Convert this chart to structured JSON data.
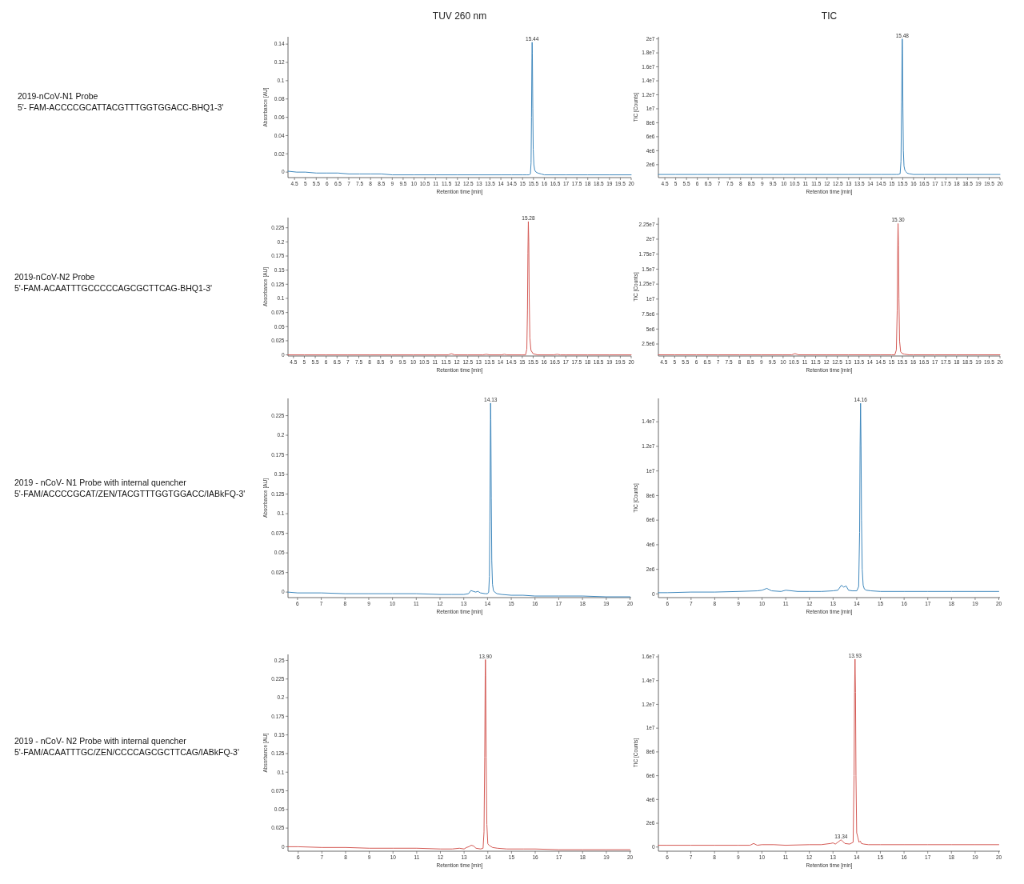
{
  "chart_data": [
    {
      "type": "line",
      "title": "TUV 260 nm",
      "xlabel": "Retention time [min]",
      "ylabel": "Absorbance [AU]",
      "annotations": [
        "2019-nCoV-N1 Probe",
        "5'- FAM-ACCCCGCATTACGTTTGGTGGACC-BHQ1-3'",
        {
          "text": "15.44",
          "x": 15.44,
          "y": 0.142
        }
      ],
      "xlim": [
        4.2,
        20
      ],
      "xticks": [
        4.5,
        5,
        5.5,
        6,
        6.5,
        7,
        7.5,
        8,
        8.5,
        9,
        9.5,
        10,
        10.5,
        11,
        11.5,
        12,
        12.5,
        13,
        13.5,
        14,
        14.5,
        15,
        15.5,
        16,
        16.5,
        17,
        17.5,
        18,
        18.5,
        19,
        19.5,
        20
      ],
      "ylim": [
        -0.006,
        0.148
      ],
      "yticks": [
        0,
        0.02,
        0.04,
        0.06,
        0.08,
        0.1,
        0.12,
        0.14
      ],
      "series": [
        {
          "color": "#3f88bd",
          "x": [
            4.2,
            4.6,
            5,
            5.5,
            6,
            6.5,
            7,
            7.5,
            8,
            8.5,
            9,
            10,
            11,
            12,
            13,
            14,
            14.5,
            15,
            15.2,
            15.3,
            15.36,
            15.39,
            15.41,
            15.43,
            15.44,
            15.45,
            15.47,
            15.49,
            15.52,
            15.56,
            15.62,
            15.7,
            15.85,
            16,
            16.5,
            17,
            18,
            19,
            20
          ],
          "values": [
            0.001,
            0,
            0,
            -0.001,
            -0.001,
            -0.001,
            -0.002,
            -0.002,
            -0.002,
            -0.002,
            -0.003,
            -0.003,
            -0.003,
            -0.003,
            -0.003,
            -0.003,
            -0.003,
            -0.003,
            -0.003,
            -0.003,
            -0.002,
            0.01,
            0.06,
            0.125,
            0.142,
            0.13,
            0.07,
            0.025,
            0.008,
            0.002,
            0,
            -0.001,
            -0.002,
            -0.003,
            -0.003,
            -0.003,
            -0.003,
            -0.003,
            -0.003
          ]
        }
      ]
    },
    {
      "type": "line",
      "title": "TIC",
      "xlabel": "Retention time [min]",
      "ylabel": "TIC [Counts]",
      "annotations": [
        {
          "text": "15.48",
          "x": 15.48,
          "y": 20000000
        }
      ],
      "xlim": [
        4.2,
        20
      ],
      "xticks": [
        4.5,
        5,
        5.5,
        6,
        6.5,
        7,
        7.5,
        8,
        8.5,
        9,
        9.5,
        10,
        10.5,
        11,
        11.5,
        12,
        12.5,
        13,
        13.5,
        14,
        14.5,
        15,
        15.5,
        16,
        16.5,
        17,
        17.5,
        18,
        18.5,
        19,
        19.5,
        20
      ],
      "ylim": [
        150000,
        20300000
      ],
      "yticks": [
        {
          "value": 2000000,
          "label": "2e6"
        },
        {
          "value": 4000000,
          "label": "4e6"
        },
        {
          "value": 6000000,
          "label": "6e6"
        },
        {
          "value": 8000000,
          "label": "8e6"
        },
        {
          "value": 10000000,
          "label": "1e7"
        },
        {
          "value": 12000000,
          "label": "1.2e7"
        },
        {
          "value": 14000000,
          "label": "1.4e7"
        },
        {
          "value": 16000000,
          "label": "1.6e7"
        },
        {
          "value": 18000000,
          "label": "1.8e7"
        },
        {
          "value": 20000000,
          "label": "2e7"
        }
      ],
      "series": [
        {
          "color": "#3f88bd",
          "x": [
            4.2,
            5,
            6,
            7,
            8,
            9,
            10,
            11,
            12,
            13,
            14,
            14.5,
            15,
            15.2,
            15.3,
            15.38,
            15.42,
            15.45,
            15.47,
            15.48,
            15.49,
            15.51,
            15.53,
            15.56,
            15.6,
            15.65,
            15.7,
            15.8,
            16,
            16.5,
            17,
            18,
            19,
            20
          ],
          "values": [
            600000,
            600000,
            600000,
            600000,
            600000,
            600000,
            600000,
            600000,
            600000,
            600000,
            600000,
            600000,
            600000,
            600000,
            600000,
            700000,
            2500000,
            11000000,
            18000000,
            20000000,
            18500000,
            10000000,
            4000000,
            1800000,
            1200000,
            1000000,
            800000,
            700000,
            600000,
            600000,
            600000,
            600000,
            600000,
            600000
          ]
        }
      ]
    },
    {
      "type": "line",
      "xlabel": "Retention time [min]",
      "ylabel": "Absorbance [AU]",
      "annotations": [
        "2019-nCoV-N2 Probe",
        "5'-FAM-ACAATTTGCCCCCAGCGCTTCAG-BHQ1-3'",
        {
          "text": "15.28",
          "x": 15.28,
          "y": 0.236
        }
      ],
      "xlim": [
        4.25,
        20
      ],
      "xticks": [
        4.5,
        5,
        5.5,
        6,
        6.5,
        7,
        7.5,
        8,
        8.5,
        9,
        9.5,
        10,
        10.5,
        11,
        11.5,
        12,
        12.5,
        13,
        13.5,
        14,
        14.5,
        15,
        15.5,
        16,
        16.5,
        17,
        17.5,
        18,
        18.5,
        19,
        19.5,
        20
      ],
      "ylim": [
        -0.002,
        0.243
      ],
      "yticks": [
        0,
        0.025,
        0.05,
        0.075,
        0.1,
        0.125,
        0.15,
        0.175,
        0.2,
        0.225
      ],
      "series": [
        {
          "color": "#d45a55",
          "x": [
            4.25,
            5,
            6,
            7,
            8,
            9,
            10,
            11,
            11.6,
            11.75,
            11.9,
            12.5,
            13.2,
            13.35,
            13.5,
            14.05,
            14.18,
            14.3,
            15,
            15.15,
            15.21,
            15.24,
            15.26,
            15.28,
            15.3,
            15.32,
            15.35,
            15.4,
            15.5,
            15.7,
            16.45,
            16.6,
            16.75,
            17,
            18,
            19,
            20
          ],
          "values": [
            0,
            0,
            0,
            0,
            0,
            0,
            0,
            0,
            0,
            0.002,
            0,
            0,
            0,
            0.001,
            0,
            0,
            0.001,
            0,
            0,
            0,
            0.01,
            0.08,
            0.18,
            0.236,
            0.2,
            0.1,
            0.03,
            0.008,
            0.002,
            0,
            0,
            0.001,
            0,
            0,
            0,
            0,
            0
          ]
        }
      ]
    },
    {
      "type": "line",
      "xlabel": "Retention time [min]",
      "ylabel": "TIC [Counts]",
      "annotations": [
        {
          "text": "15.30",
          "x": 15.3,
          "y": 22600000
        }
      ],
      "xlim": [
        4.25,
        20
      ],
      "xticks": [
        4.5,
        5,
        5.5,
        6,
        6.5,
        7,
        7.5,
        8,
        8.5,
        9,
        9.5,
        10,
        10.5,
        11,
        11.5,
        12,
        12.5,
        13,
        13.5,
        14,
        14.5,
        15,
        15.5,
        16,
        16.5,
        17,
        17.5,
        18,
        18.5,
        19,
        19.5,
        20
      ],
      "ylim": [
        500000,
        23600000
      ],
      "yticks": [
        {
          "value": 2500000,
          "label": "2.5e6"
        },
        {
          "value": 5000000,
          "label": "5e6"
        },
        {
          "value": 7500000,
          "label": "7.5e6"
        },
        {
          "value": 10000000,
          "label": "1e7"
        },
        {
          "value": 12500000,
          "label": "1.25e7"
        },
        {
          "value": 15000000,
          "label": "1.5e7"
        },
        {
          "value": 17500000,
          "label": "1.75e7"
        },
        {
          "value": 20000000,
          "label": "2e7"
        },
        {
          "value": 22500000,
          "label": "2.25e7"
        }
      ],
      "series": [
        {
          "color": "#d45a55",
          "x": [
            4.25,
            5,
            6,
            7,
            8,
            9,
            10,
            10.4,
            10.55,
            10.7,
            11,
            12,
            13,
            14,
            14.5,
            15,
            15.15,
            15.22,
            15.26,
            15.28,
            15.3,
            15.32,
            15.34,
            15.37,
            15.42,
            15.5,
            15.6,
            15.8,
            16,
            17,
            18,
            19,
            20
          ],
          "values": [
            700000,
            700000,
            700000,
            700000,
            700000,
            700000,
            700000,
            700000,
            900000,
            700000,
            700000,
            700000,
            700000,
            700000,
            700000,
            700000,
            700000,
            1500000,
            8000000,
            18000000,
            22600000,
            19000000,
            10000000,
            3000000,
            1200000,
            900000,
            800000,
            700000,
            700000,
            700000,
            700000,
            700000,
            700000
          ]
        }
      ]
    },
    {
      "type": "line",
      "xlabel": "Retention time [min]",
      "ylabel": "Absorbance [AU]",
      "annotations": [
        "2019 - nCoV- N1 Probe with internal quencher",
        "5'-FAM/ACCCCGCAT/ZEN/TACGTTTGGTGGACC/IABkFQ-3'",
        {
          "text": "14.13",
          "x": 14.13,
          "y": 0.241
        }
      ],
      "xlim": [
        5.6,
        20.05
      ],
      "xticks": [
        6,
        7,
        8,
        9,
        10,
        11,
        12,
        13,
        14,
        15,
        16,
        17,
        18,
        19,
        20
      ],
      "ylim": [
        -0.007,
        0.247
      ],
      "yticks": [
        0,
        0.025,
        0.05,
        0.075,
        0.1,
        0.125,
        0.15,
        0.175,
        0.2,
        0.225
      ],
      "series": [
        {
          "color": "#3f88bd",
          "x": [
            5.6,
            6,
            7,
            8,
            9,
            10,
            11,
            12,
            12.5,
            13,
            13.2,
            13.3,
            13.4,
            13.5,
            13.6,
            13.7,
            13.9,
            14,
            14.05,
            14.08,
            14.1,
            14.12,
            14.13,
            14.14,
            14.16,
            14.18,
            14.21,
            14.25,
            14.3,
            14.4,
            14.6,
            15,
            15.5,
            16,
            17,
            18,
            19,
            20
          ],
          "values": [
            0,
            -0.001,
            -0.001,
            -0.002,
            -0.002,
            -0.002,
            -0.002,
            -0.003,
            -0.003,
            -0.003,
            -0.002,
            0.002,
            0.001,
            0,
            0.001,
            -0.001,
            -0.002,
            -0.002,
            0,
            0.02,
            0.09,
            0.2,
            0.241,
            0.22,
            0.12,
            0.04,
            0.01,
            0.002,
            0,
            -0.002,
            -0.003,
            -0.004,
            -0.004,
            -0.005,
            -0.005,
            -0.005,
            -0.006,
            -0.006
          ]
        }
      ]
    },
    {
      "type": "line",
      "xlabel": "Retention time [min]",
      "ylabel": "TIC [Counts]",
      "annotations": [
        {
          "text": "14.16",
          "x": 14.16,
          "y": 15500000
        }
      ],
      "xlim": [
        5.62,
        20.05
      ],
      "xticks": [
        6,
        7,
        8,
        9,
        10,
        11,
        12,
        13,
        14,
        15,
        16,
        17,
        18,
        19,
        20
      ],
      "ylim": [
        -300000,
        15900000
      ],
      "yticks": [
        0,
        {
          "value": 2000000,
          "label": "2e6"
        },
        {
          "value": 4000000,
          "label": "4e6"
        },
        {
          "value": 6000000,
          "label": "6e6"
        },
        {
          "value": 8000000,
          "label": "8e6"
        },
        {
          "value": 10000000,
          "label": "1e7"
        },
        {
          "value": 12000000,
          "label": "1.2e7"
        },
        {
          "value": 14000000,
          "label": "1.4e7"
        }
      ],
      "series": [
        {
          "color": "#3f88bd",
          "x": [
            5.62,
            6,
            7,
            8,
            9,
            9.8,
            10,
            10.2,
            10.4,
            10.8,
            11,
            11.5,
            12,
            12.5,
            13,
            13.2,
            13.35,
            13.45,
            13.55,
            13.65,
            13.8,
            14,
            14.08,
            14.12,
            14.14,
            14.16,
            14.18,
            14.2,
            14.23,
            14.27,
            14.32,
            14.4,
            14.6,
            15,
            16,
            17,
            18,
            19,
            20
          ],
          "values": [
            100000,
            100000,
            150000,
            150000,
            200000,
            250000,
            300000,
            450000,
            250000,
            200000,
            300000,
            200000,
            200000,
            200000,
            250000,
            300000,
            700000,
            550000,
            650000,
            300000,
            250000,
            250000,
            600000,
            5000000,
            12000000,
            15500000,
            12000000,
            6000000,
            2000000,
            700000,
            400000,
            300000,
            250000,
            200000,
            200000,
            200000,
            200000,
            200000,
            200000
          ]
        }
      ]
    },
    {
      "type": "line",
      "xlabel": "Retention time [min]",
      "ylabel": "Absorbance [AU]",
      "annotations": [
        "2019 - nCoV- N2 Probe with internal quencher",
        "5'-FAM/ACAATTTGC/ZEN/CCCCAGCGCTTCAG/IABkFQ-3'",
        {
          "text": "13.90",
          "x": 13.9,
          "y": 0.251
        }
      ],
      "xlim": [
        5.57,
        20.05
      ],
      "xticks": [
        6,
        7,
        8,
        9,
        10,
        11,
        12,
        13,
        14,
        15,
        16,
        17,
        18,
        19,
        20
      ],
      "ylim": [
        -0.006,
        0.258
      ],
      "yticks": [
        0,
        0.025,
        0.05,
        0.075,
        0.1,
        0.125,
        0.15,
        0.175,
        0.2,
        0.225,
        0.25
      ],
      "series": [
        {
          "color": "#d45a55",
          "x": [
            5.57,
            6,
            7,
            8,
            9,
            10,
            11,
            12,
            12.5,
            12.8,
            13,
            13.1,
            13.2,
            13.3,
            13.4,
            13.5,
            13.7,
            13.8,
            13.84,
            13.87,
            13.89,
            13.9,
            13.91,
            13.93,
            13.96,
            14,
            14.05,
            14.1,
            14.2,
            14.4,
            14.8,
            15.5,
            16,
            17,
            18,
            19,
            20
          ],
          "values": [
            0,
            0,
            -0.001,
            -0.001,
            -0.002,
            -0.002,
            -0.002,
            -0.003,
            -0.003,
            -0.002,
            -0.003,
            -0.001,
            0,
            0.002,
            0.001,
            -0.002,
            -0.003,
            -0.002,
            0.02,
            0.12,
            0.23,
            0.251,
            0.23,
            0.12,
            0.03,
            0.004,
            0.002,
            0.001,
            -0.001,
            -0.002,
            -0.003,
            -0.003,
            -0.003,
            -0.004,
            -0.004,
            -0.004,
            -0.004
          ]
        }
      ]
    },
    {
      "type": "line",
      "xlabel": "Retention time [min]",
      "ylabel": "TIC [Counts]",
      "annotations": [
        {
          "text": "13.93",
          "x": 13.93,
          "y": 15800000
        },
        {
          "text": "13.34",
          "x": 13.34,
          "y": 600000
        }
      ],
      "xlim": [
        5.63,
        20.05
      ],
      "xticks": [
        6,
        7,
        8,
        9,
        10,
        11,
        12,
        13,
        14,
        15,
        16,
        17,
        18,
        19,
        20
      ],
      "ylim": [
        -350000,
        16200000
      ],
      "yticks": [
        0,
        {
          "value": 2000000,
          "label": "2e6"
        },
        {
          "value": 4000000,
          "label": "4e6"
        },
        {
          "value": 6000000,
          "label": "6e6"
        },
        {
          "value": 8000000,
          "label": "8e6"
        },
        {
          "value": 10000000,
          "label": "1e7"
        },
        {
          "value": 12000000,
          "label": "1.2e7"
        },
        {
          "value": 14000000,
          "label": "1.4e7"
        },
        {
          "value": 16000000,
          "label": "1.6e7"
        }
      ],
      "series": [
        {
          "color": "#d45a55",
          "x": [
            5.63,
            6,
            7,
            8,
            9,
            9.5,
            9.65,
            9.8,
            10,
            10.5,
            11,
            12,
            12.5,
            12.9,
            13,
            13.1,
            13.2,
            13.3,
            13.34,
            13.4,
            13.5,
            13.7,
            13.85,
            13.89,
            13.91,
            13.93,
            13.95,
            13.97,
            14,
            14.05,
            14.1,
            14.15,
            14.2,
            14.3,
            14.5,
            15,
            16,
            17,
            18,
            19,
            20
          ],
          "values": [
            150000,
            150000,
            150000,
            150000,
            150000,
            150000,
            300000,
            150000,
            200000,
            200000,
            150000,
            200000,
            200000,
            300000,
            350000,
            250000,
            400000,
            550000,
            600000,
            500000,
            300000,
            250000,
            400000,
            6000000,
            13000000,
            15800000,
            13000000,
            6000000,
            1200000,
            800000,
            400000,
            500000,
            300000,
            250000,
            200000,
            200000,
            200000,
            200000,
            200000,
            200000,
            200000
          ]
        }
      ]
    }
  ]
}
